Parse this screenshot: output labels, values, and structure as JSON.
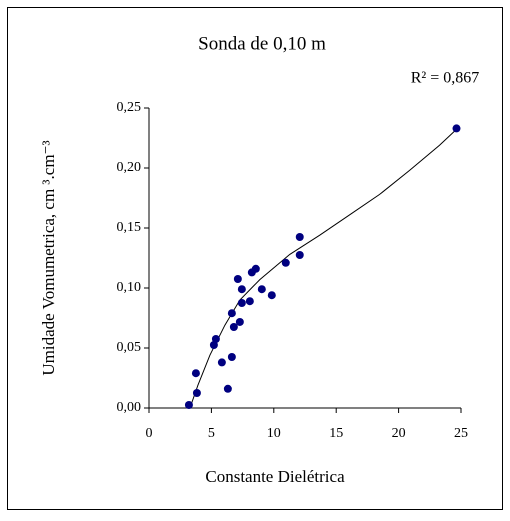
{
  "chart_data": {
    "type": "scatter",
    "title": "Sonda  de 0,10 m",
    "annotation": "R² = 0,867",
    "x_label": "Constante Dielétrica",
    "y_label": "Umidade Vomumetrica, cm ³.cm⁻³",
    "xlim": [
      0,
      25
    ],
    "xticks": [
      0,
      5,
      10,
      15,
      20,
      25
    ],
    "ylim": [
      0,
      0.25
    ],
    "yticks": [
      {
        "value": 0,
        "label": "0,00"
      },
      {
        "value": 0.05,
        "label": "0,05"
      },
      {
        "value": 0.1,
        "label": "0,10"
      },
      {
        "value": 0.15,
        "label": "0,15"
      },
      {
        "value": 0.2,
        "label": "0,20"
      },
      {
        "value": 0.25,
        "label": "0,25"
      }
    ],
    "color": "#000080",
    "x": [
      3.2,
      3.84,
      3.76,
      5.2,
      5.36,
      5.84,
      6.32,
      6.64,
      6.64,
      6.8,
      7.28,
      7.12,
      7.44,
      7.44,
      8.08,
      8.24,
      8.56,
      9.04,
      9.84,
      10.96,
      12.08,
      12.08,
      24.64
    ],
    "values": [
      0.0025,
      0.0125,
      0.029,
      0.0525,
      0.0575,
      0.038,
      0.016,
      0.0425,
      0.079,
      0.0675,
      0.0717,
      0.1075,
      0.099,
      0.0875,
      0.089,
      0.113,
      0.116,
      0.099,
      0.094,
      0.121,
      0.1425,
      0.1275,
      0.233
    ],
    "trendline": {
      "color": "#000000",
      "x": [
        3.28,
        3.92,
        4.88,
        6.08,
        7.28,
        8.88,
        11.28,
        13.68,
        16.08,
        18.48,
        20.88,
        23.28,
        24.72
      ],
      "values": [
        0,
        0.019,
        0.044,
        0.069,
        0.09,
        0.107,
        0.128,
        0.144,
        0.161,
        0.178,
        0.198,
        0.219,
        0.233
      ]
    }
  }
}
